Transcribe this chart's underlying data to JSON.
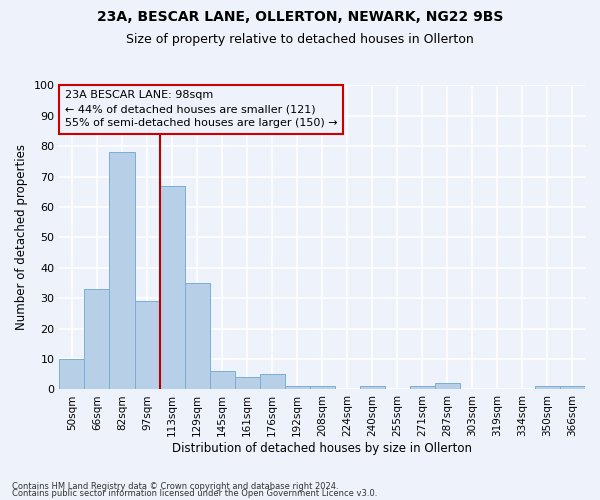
{
  "title1": "23A, BESCAR LANE, OLLERTON, NEWARK, NG22 9BS",
  "title2": "Size of property relative to detached houses in Ollerton",
  "xlabel": "Distribution of detached houses by size in Ollerton",
  "ylabel": "Number of detached properties",
  "categories": [
    "50sqm",
    "66sqm",
    "82sqm",
    "97sqm",
    "113sqm",
    "129sqm",
    "145sqm",
    "161sqm",
    "176sqm",
    "192sqm",
    "208sqm",
    "224sqm",
    "240sqm",
    "255sqm",
    "271sqm",
    "287sqm",
    "303sqm",
    "319sqm",
    "334sqm",
    "350sqm",
    "366sqm"
  ],
  "values": [
    10,
    33,
    78,
    29,
    67,
    35,
    6,
    4,
    5,
    1,
    1,
    0,
    1,
    0,
    1,
    2,
    0,
    0,
    0,
    1,
    1
  ],
  "bar_color": "#b8cfe8",
  "bar_edge_color": "#7aaed4",
  "vline_x": 3.5,
  "vline_color": "#bb0000",
  "annotation_title": "23A BESCAR LANE: 98sqm",
  "annotation_line1": "← 44% of detached houses are smaller (121)",
  "annotation_line2": "55% of semi-detached houses are larger (150) →",
  "annotation_box_color": "#cc0000",
  "ylim": [
    0,
    100
  ],
  "yticks": [
    0,
    10,
    20,
    30,
    40,
    50,
    60,
    70,
    80,
    90,
    100
  ],
  "footnote1": "Contains HM Land Registry data © Crown copyright and database right 2024.",
  "footnote2": "Contains public sector information licensed under the Open Government Licence v3.0.",
  "bg_color": "#eef2fa",
  "grid_color": "#ffffff",
  "title_fontsize": 10,
  "subtitle_fontsize": 9,
  "axis_label_fontsize": 8.5,
  "tick_fontsize": 8,
  "footnote_fontsize": 6
}
